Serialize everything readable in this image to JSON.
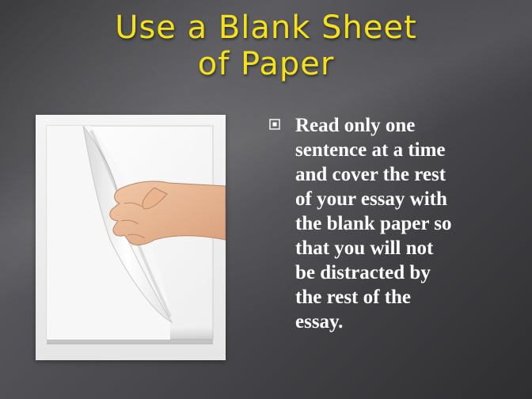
{
  "slide": {
    "title_line1": "Use a Blank Sheet",
    "title_line2": "of Paper",
    "bullet": "Read only one\nsentence at a time\nand cover the rest\nof your essay with\nthe blank paper so\nthat you will not\nbe distracted by\nthe rest of the\nessay.",
    "image": {
      "icon": "hand-turning-page-image"
    }
  },
  "colors": {
    "title": "#f4e11b",
    "text": "#ffffff",
    "background": "#4a4a4e"
  }
}
